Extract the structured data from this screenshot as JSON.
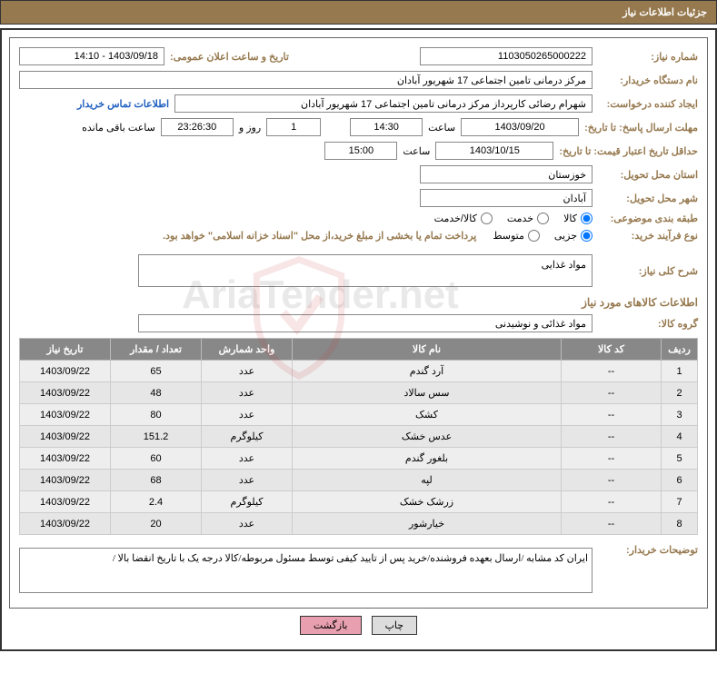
{
  "header": {
    "title": "جزئیات اطلاعات نیاز"
  },
  "fields": {
    "need_no_label": "شماره نیاز:",
    "need_no": "1103050265000222",
    "announce_label": "تاریخ و ساعت اعلان عمومی:",
    "announce": "1403/09/18 - 14:10",
    "buyer_label": "نام دستگاه خریدار:",
    "buyer": "مرکز درمانی تامین اجتماعی 17 شهریور آبادان",
    "requester_label": "ایجاد کننده درخواست:",
    "requester": "شهرام رضائی کارپرداز مرکز درمانی تامین اجتماعی 17 شهریور آبادان",
    "contact_link": "اطلاعات تماس خریدار",
    "deadline_label": "مهلت ارسال پاسخ: تا تاریخ:",
    "deadline_date": "1403/09/20",
    "time_label": "ساعت",
    "deadline_time": "14:30",
    "days": "1",
    "days_label": "روز و",
    "countdown": "23:26:30",
    "remain_label": "ساعت باقی مانده",
    "validity_label": "حداقل تاریخ اعتبار قیمت: تا تاریخ:",
    "validity_date": "1403/10/15",
    "validity_time": "15:00",
    "province_label": "استان محل تحویل:",
    "province": "خوزستان",
    "city_label": "شهر محل تحویل:",
    "city": "آبادان",
    "category_label": "طبقه بندی موضوعی:",
    "opt_goods": "کالا",
    "opt_service": "خدمت",
    "opt_both": "کالا/خدمت",
    "buytype_label": "نوع فرآیند خرید:",
    "opt_partial": "جزیی",
    "opt_medium": "متوسط",
    "buy_note": "پرداخت تمام یا بخشی از مبلغ خرید،از محل \"اسناد خزانه اسلامی\" خواهد بود.",
    "desc_label": "شرح کلی نیاز:",
    "desc": "مواد غذایی",
    "goods_title": "اطلاعات کالاهای مورد نیاز",
    "group_label": "گروه کالا:",
    "group": "مواد غذائی و نوشیدنی",
    "notes_label": "توضیحات خریدار:",
    "notes": "ایران کد مشابه /ارسال بعهده فروشنده/خرید پس از تایید کیفی توسط مسئول مربوطه/کالا درجه یک با تاریخ انقضا بالا /"
  },
  "table": {
    "headers": {
      "row": "ردیف",
      "code": "کد کالا",
      "name": "نام کالا",
      "unit": "واحد شمارش",
      "qty": "تعداد / مقدار",
      "date": "تاریخ نیاز"
    },
    "rows": [
      {
        "n": "1",
        "code": "--",
        "name": "آرد گندم",
        "unit": "عدد",
        "qty": "65",
        "date": "1403/09/22"
      },
      {
        "n": "2",
        "code": "--",
        "name": "سس سالاد",
        "unit": "عدد",
        "qty": "48",
        "date": "1403/09/22"
      },
      {
        "n": "3",
        "code": "--",
        "name": "کشک",
        "unit": "عدد",
        "qty": "80",
        "date": "1403/09/22"
      },
      {
        "n": "4",
        "code": "--",
        "name": "عدس خشک",
        "unit": "کیلوگرم",
        "qty": "151.2",
        "date": "1403/09/22"
      },
      {
        "n": "5",
        "code": "--",
        "name": "بلغور گندم",
        "unit": "عدد",
        "qty": "60",
        "date": "1403/09/22"
      },
      {
        "n": "6",
        "code": "--",
        "name": "لپه",
        "unit": "عدد",
        "qty": "68",
        "date": "1403/09/22"
      },
      {
        "n": "7",
        "code": "--",
        "name": "زرشک خشک",
        "unit": "کیلوگرم",
        "qty": "2.4",
        "date": "1403/09/22"
      },
      {
        "n": "8",
        "code": "--",
        "name": "خیارشور",
        "unit": "عدد",
        "qty": "20",
        "date": "1403/09/22"
      }
    ]
  },
  "buttons": {
    "print": "چاپ",
    "back": "بازگشت"
  },
  "watermark": "AriaTender.net"
}
